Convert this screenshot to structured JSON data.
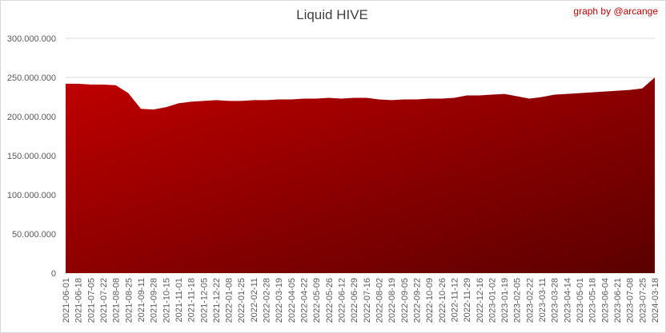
{
  "chart_data": {
    "type": "area",
    "title": "Liquid HIVE",
    "annotation": "graph by @arcange",
    "color": "#c00000",
    "x": [
      "2021-06-01",
      "2021-06-18",
      "2021-07-05",
      "2021-07-22",
      "2021-08-08",
      "2021-08-25",
      "2021-09-11",
      "2021-09-28",
      "2021-10-15",
      "2021-11-01",
      "2021-11-18",
      "2021-12-05",
      "2021-12-22",
      "2022-01-08",
      "2022-01-25",
      "2022-02-11",
      "2022-02-28",
      "2022-03-19",
      "2022-04-05",
      "2022-04-22",
      "2022-05-09",
      "2022-05-26",
      "2022-06-12",
      "2022-06-29",
      "2022-07-16",
      "2022-08-02",
      "2022-08-19",
      "2022-09-05",
      "2022-09-22",
      "2022-10-09",
      "2022-10-26",
      "2022-11-12",
      "2022-11-29",
      "2022-12-16",
      "2023-01-02",
      "2023-01-19",
      "2023-02-05",
      "2023-02-22",
      "2023-03-11",
      "2023-03-28",
      "2023-04-14",
      "2023-05-01",
      "2023-05-18",
      "2023-06-04",
      "2023-06-21",
      "2023-07-08",
      "2023-07-25",
      "2024-03-18"
    ],
    "values": [
      242000000,
      242000000,
      241000000,
      241000000,
      240000000,
      230000000,
      210000000,
      209000000,
      212000000,
      217000000,
      219000000,
      220000000,
      221000000,
      220000000,
      220000000,
      221000000,
      221000000,
      222000000,
      222000000,
      223000000,
      223000000,
      224000000,
      223000000,
      224000000,
      224000000,
      222000000,
      221000000,
      222000000,
      222000000,
      223000000,
      223000000,
      224000000,
      227000000,
      227000000,
      228000000,
      229000000,
      226000000,
      223000000,
      225000000,
      228000000,
      229000000,
      230000000,
      231000000,
      232000000,
      233000000,
      234000000,
      236000000,
      250000000
    ],
    "ylim": [
      0,
      300000000
    ],
    "yticks": [
      0,
      {
        "value": 50000000,
        "label": "50.000.000"
      },
      {
        "value": 100000000,
        "label": "100.000.000"
      },
      {
        "value": 150000000,
        "label": "150.000.000"
      },
      {
        "value": 200000000,
        "label": "200.000.000"
      },
      {
        "value": 250000000,
        "label": "250.000.000"
      },
      {
        "value": 300000000,
        "label": "300.000.000"
      }
    ],
    "grid": true
  }
}
